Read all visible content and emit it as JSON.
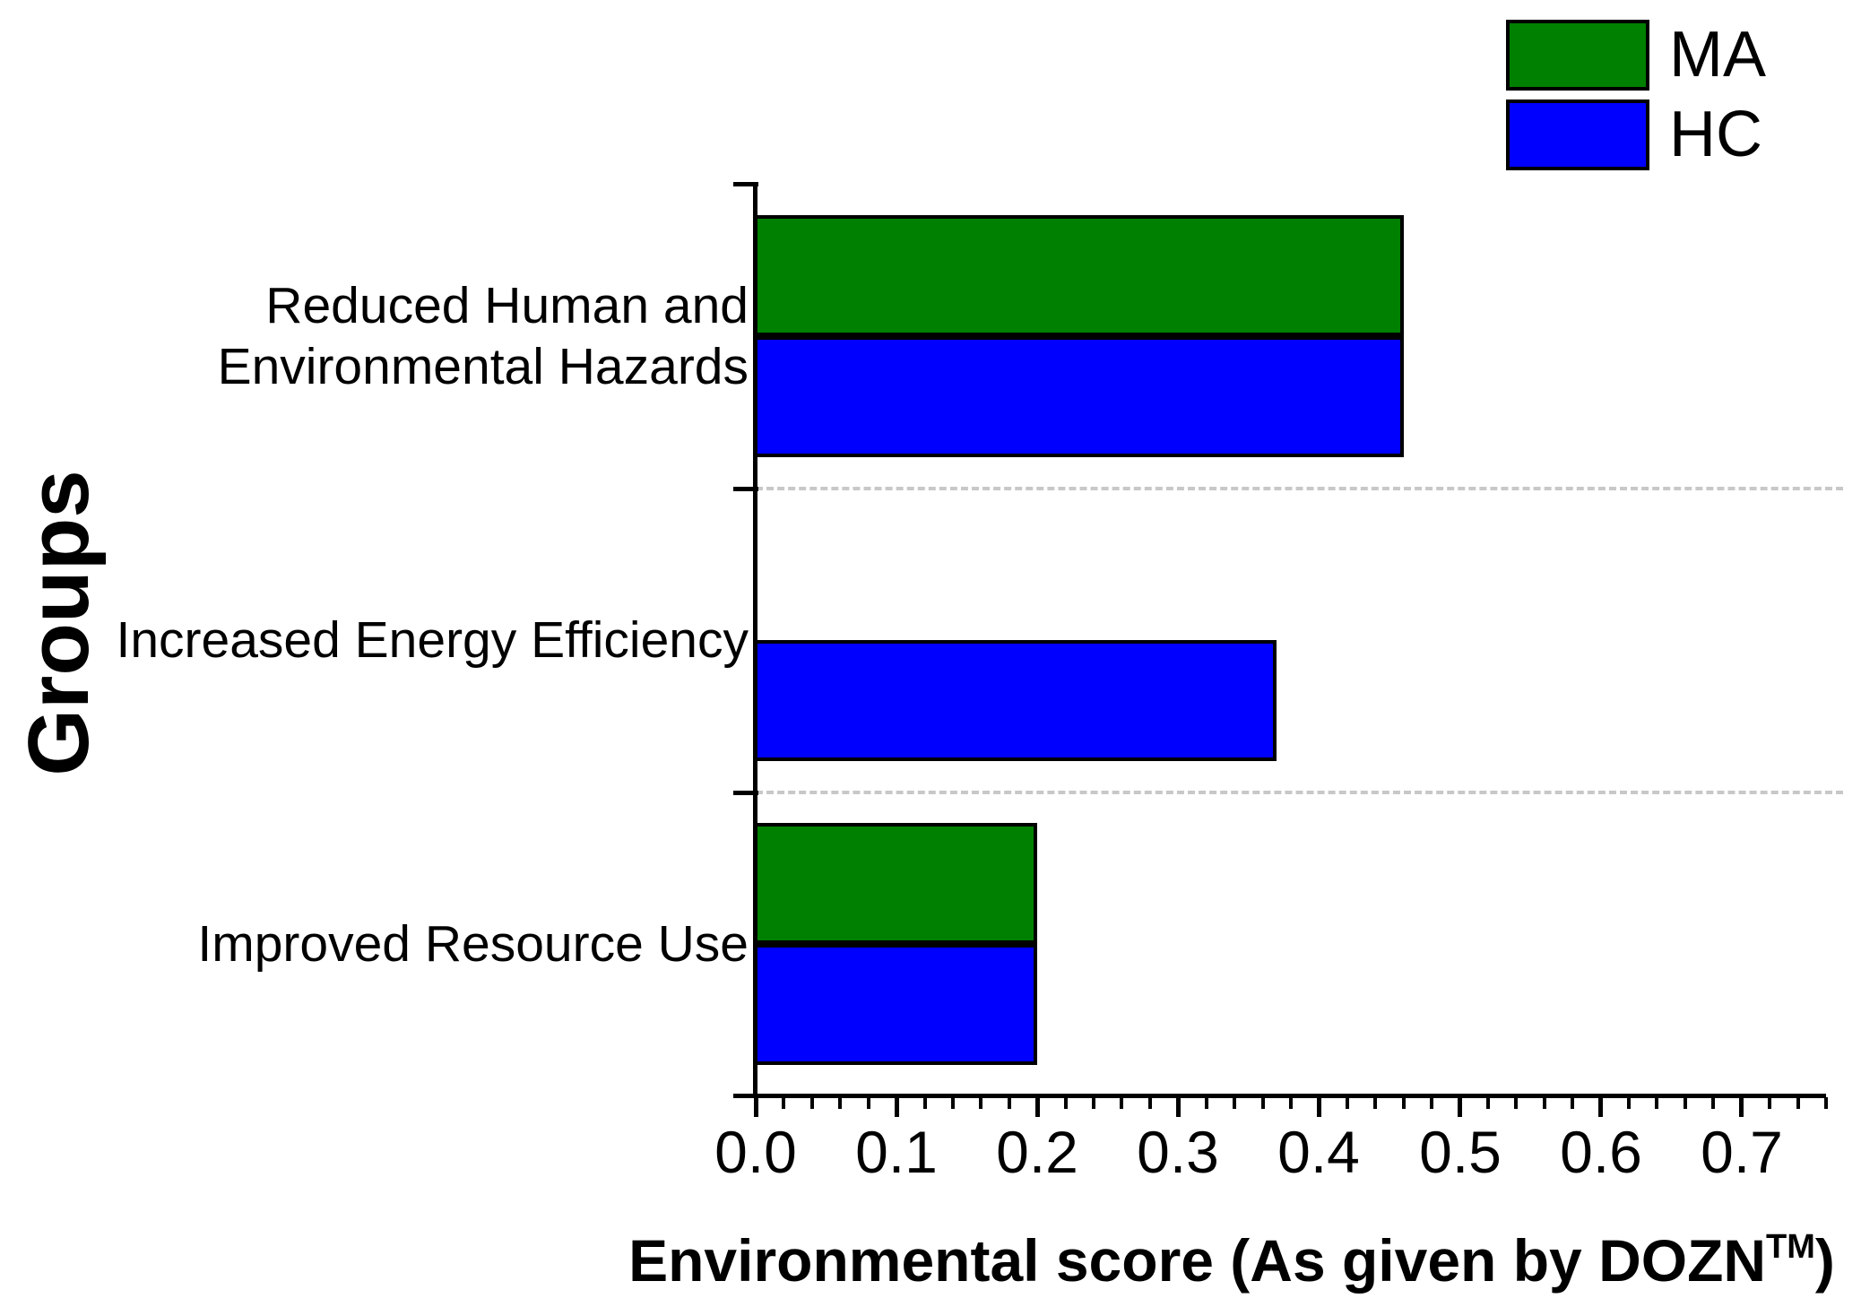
{
  "page": {
    "background": "#ffffff"
  },
  "legend": {
    "position": "top-right",
    "items": [
      {
        "label": "MA",
        "color": "#008000"
      },
      {
        "label": "HC",
        "color": "#0000ff"
      }
    ]
  },
  "chart_data": {
    "type": "bar",
    "orientation": "horizontal",
    "title": "",
    "xlabel_parts": {
      "main": "Environmental score (As given by DOZN",
      "superscript": "TM",
      "suffix": ")"
    },
    "ylabel": "Groups",
    "categories": [
      "Reduced Human and Environmental Hazards",
      "Increased Energy Efficiency",
      "Improved Resource Use"
    ],
    "category_label_lines": [
      [
        "Reduced Human and",
        "Environmental Hazards"
      ],
      [
        "Increased Energy Efficiency"
      ],
      [
        "Improved Resource Use"
      ]
    ],
    "series": [
      {
        "name": "MA",
        "color": "#008000",
        "values": [
          0.46,
          0,
          0.2
        ]
      },
      {
        "name": "HC",
        "color": "#0000ff",
        "values": [
          0.46,
          0.37,
          0.2
        ]
      }
    ],
    "xlim": [
      0,
      0.76
    ],
    "x_major_ticks": [
      0.0,
      0.1,
      0.2,
      0.3,
      0.4,
      0.5,
      0.6,
      0.7
    ],
    "x_tick_labels": [
      "0.0",
      "0.1",
      "0.2",
      "0.3",
      "0.4",
      "0.5",
      "0.6",
      "0.7"
    ],
    "x_minor_tick_step": 0.02,
    "bar_outline_color": "#000000",
    "axis_color": "#000000",
    "gridline_color": "#c8c8c8",
    "gridline_style": "dashed",
    "grid_between_groups": true,
    "legend_position": "top-right"
  }
}
